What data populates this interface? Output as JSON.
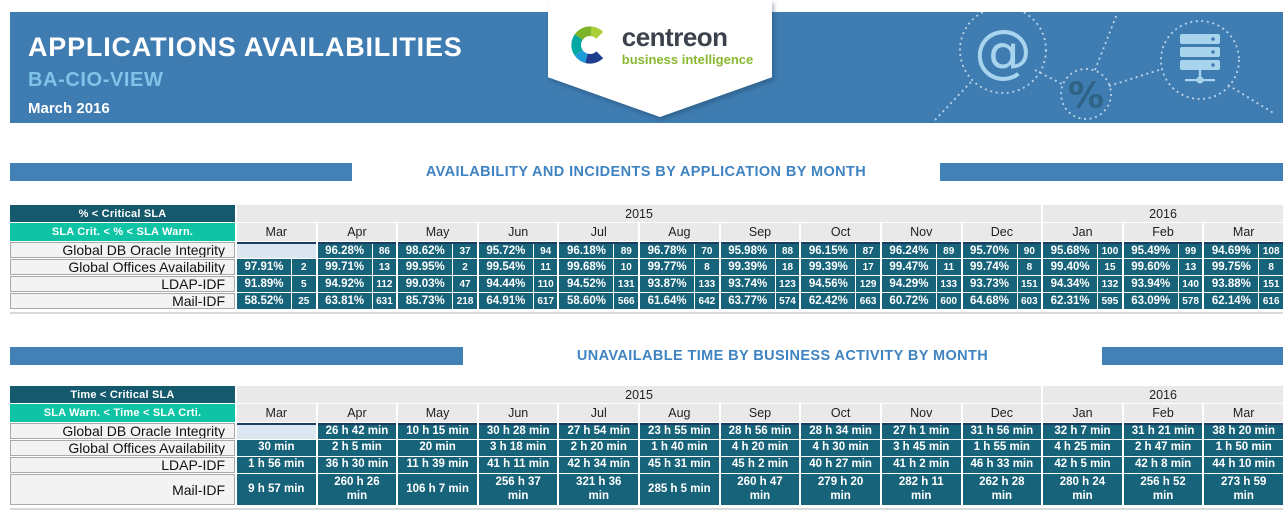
{
  "header": {
    "title": "APPLICATIONS AVAILABILITIES",
    "subtitle": "BA-CIO-VIEW",
    "period": "March 2016",
    "logo": {
      "wordmark": "centreon",
      "tagline": "business intelligence"
    },
    "decoration_icons": [
      "at-icon",
      "percent-icon",
      "server-icon"
    ],
    "at_glyph": "@",
    "percent_glyph": "%"
  },
  "colors": {
    "header_blue": "#3e7cb1",
    "section_title_blue": "#3f83c1",
    "sla_critical_teal": "#17637a",
    "sla_warning_teal": "#0fc4a5",
    "empty_cell_blue": "#dce6f1",
    "logo_green": "#89b92e"
  },
  "sections": [
    {
      "title": "AVAILABILITY AND INCIDENTS BY APPLICATION BY MONTH",
      "table": {
        "legend_critical": "% < Critical SLA",
        "legend_warning": "SLA Crit. < % < SLA Warn.",
        "year_groups": [
          {
            "label": "2015",
            "span": 10
          },
          {
            "label": "2016",
            "span": 3
          }
        ],
        "months": [
          "Mar",
          "Apr",
          "May",
          "Jun",
          "Jul",
          "Aug",
          "Sep",
          "Oct",
          "Nov",
          "Dec",
          "Jan",
          "Feb",
          "Mar"
        ],
        "rows": [
          {
            "label": "Global DB Oracle Integrity",
            "cells": [
              null,
              {
                "p": "96.28%",
                "n": "86"
              },
              {
                "p": "98.62%",
                "n": "37"
              },
              {
                "p": "95.72%",
                "n": "94"
              },
              {
                "p": "96.18%",
                "n": "89"
              },
              {
                "p": "96.78%",
                "n": "70"
              },
              {
                "p": "95.98%",
                "n": "88"
              },
              {
                "p": "96.15%",
                "n": "87"
              },
              {
                "p": "96.24%",
                "n": "89"
              },
              {
                "p": "95.70%",
                "n": "90"
              },
              {
                "p": "95.68%",
                "n": "100"
              },
              {
                "p": "95.49%",
                "n": "99"
              },
              {
                "p": "94.69%",
                "n": "108"
              }
            ]
          },
          {
            "label": "Global Offices Availability",
            "cells": [
              {
                "p": "97.91%",
                "n": "2"
              },
              {
                "p": "99.71%",
                "n": "13"
              },
              {
                "p": "99.95%",
                "n": "2"
              },
              {
                "p": "99.54%",
                "n": "11"
              },
              {
                "p": "99.68%",
                "n": "10"
              },
              {
                "p": "99.77%",
                "n": "8"
              },
              {
                "p": "99.39%",
                "n": "18"
              },
              {
                "p": "99.39%",
                "n": "17"
              },
              {
                "p": "99.47%",
                "n": "11"
              },
              {
                "p": "99.74%",
                "n": "8"
              },
              {
                "p": "99.40%",
                "n": "15"
              },
              {
                "p": "99.60%",
                "n": "13"
              },
              {
                "p": "99.75%",
                "n": "8"
              }
            ]
          },
          {
            "label": "LDAP-IDF",
            "cells": [
              {
                "p": "91.89%",
                "n": "5"
              },
              {
                "p": "94.92%",
                "n": "112"
              },
              {
                "p": "99.03%",
                "n": "47"
              },
              {
                "p": "94.44%",
                "n": "110"
              },
              {
                "p": "94.52%",
                "n": "131"
              },
              {
                "p": "93.87%",
                "n": "133"
              },
              {
                "p": "93.74%",
                "n": "123"
              },
              {
                "p": "94.56%",
                "n": "129"
              },
              {
                "p": "94.29%",
                "n": "133"
              },
              {
                "p": "93.73%",
                "n": "151"
              },
              {
                "p": "94.34%",
                "n": "132"
              },
              {
                "p": "93.94%",
                "n": "140"
              },
              {
                "p": "93.88%",
                "n": "151"
              }
            ]
          },
          {
            "label": "Mail-IDF",
            "cells": [
              {
                "p": "58.52%",
                "n": "25"
              },
              {
                "p": "63.81%",
                "n": "631"
              },
              {
                "p": "85.73%",
                "n": "218"
              },
              {
                "p": "64.91%",
                "n": "617"
              },
              {
                "p": "58.60%",
                "n": "566"
              },
              {
                "p": "61.64%",
                "n": "642"
              },
              {
                "p": "63.77%",
                "n": "574"
              },
              {
                "p": "62.42%",
                "n": "663"
              },
              {
                "p": "60.72%",
                "n": "600"
              },
              {
                "p": "64.68%",
                "n": "603"
              },
              {
                "p": "62.31%",
                "n": "595"
              },
              {
                "p": "63.09%",
                "n": "578"
              },
              {
                "p": "62.14%",
                "n": "616"
              }
            ]
          }
        ]
      }
    },
    {
      "title": "UNAVAILABLE TIME BY BUSINESS ACTIVITY BY MONTH",
      "table": {
        "legend_critical": "Time < Critical SLA",
        "legend_warning": "SLA Warn. < Time < SLA Crti.",
        "year_groups": [
          {
            "label": "2015",
            "span": 10
          },
          {
            "label": "2016",
            "span": 3
          }
        ],
        "months": [
          "Mar",
          "Apr",
          "May",
          "Jun",
          "Jul",
          "Aug",
          "Sep",
          "Oct",
          "Nov",
          "Dec",
          "Jan",
          "Feb",
          "Mar"
        ],
        "rows": [
          {
            "label": "Global DB Oracle Integrity",
            "cells": [
              null,
              "26 h 42 min",
              "10 h 15 min",
              "30 h 28 min",
              "27 h 54 min",
              "23 h 55 min",
              "28 h 56 min",
              "28 h 34 min",
              "27 h 1 min",
              "31 h 56 min",
              "32 h 7 min",
              "31 h 21 min",
              "38 h 20 min"
            ]
          },
          {
            "label": "Global Offices Availability",
            "cells": [
              "30 min",
              "2 h 5 min",
              "20 min",
              "3 h 18 min",
              "2 h 20 min",
              "1 h 40 min",
              "4 h 20 min",
              "4 h 30 min",
              "3 h 45 min",
              "1 h 55 min",
              "4 h 25 min",
              "2 h 47 min",
              "1 h 50 min"
            ]
          },
          {
            "label": "LDAP-IDF",
            "cells": [
              "1 h 56 min",
              "36 h 30 min",
              "11 h 39 min",
              "41 h 11 min",
              "42 h 34 min",
              "45 h 31 min",
              "45 h 2 min",
              "40 h 27 min",
              "41 h 2 min",
              "46 h 33 min",
              "42 h 5 min",
              "42 h 8 min",
              "44 h 10 min"
            ]
          },
          {
            "label": "Mail-IDF",
            "cells": [
              "9 h 57 min",
              "260 h 26 min",
              "106 h 7 min",
              "256 h 37 min",
              "321 h 36 min",
              "285 h 5 min",
              "260 h 47 min",
              "279 h 20 min",
              "282 h 11 min",
              "262 h 28 min",
              "280 h 24 min",
              "256 h 52 min",
              "273 h 59 min"
            ]
          }
        ]
      }
    }
  ]
}
